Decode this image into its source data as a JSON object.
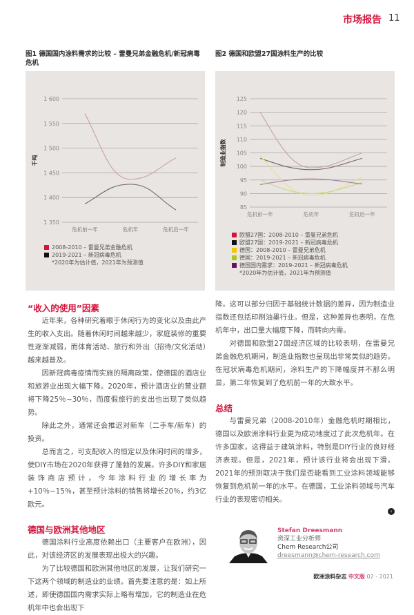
{
  "header": {
    "section": "市场报告",
    "page": "11"
  },
  "fig1": {
    "title": "图1 德国国内涂料需求的比较 – 雷曼兄弟金融危机/新冠病毒危机",
    "ylabel": "千吨",
    "legend": [
      {
        "label": "2008-2010 – 雷曼兄弟金融危机",
        "color": "#d4143c"
      },
      {
        "label": "2019-2021 – 新冠病毒危机",
        "color": "#111111"
      }
    ],
    "note": "*2020年为估计值，2021年为预测值"
  },
  "fig2": {
    "title": "图2 德国和欧盟27国涂料生产的比较",
    "ylabel": "制造业指数",
    "legend": [
      {
        "label": "欧盟27国：2008-2010 – 雷曼兄弟危机",
        "color": "#d4143c"
      },
      {
        "label": "欧盟27国：2019-2021 – 新冠病毒危机",
        "color": "#111111"
      },
      {
        "label": "德国：2008-2010 – 雷曼兄弟危机",
        "color": "#f5c400"
      },
      {
        "label": "德国：2019-2021 – 新冠病毒危机",
        "color": "#a8c81e"
      },
      {
        "label": "德国国内需求：2019-2021 – 新冠病毒危机",
        "color": "#6a1060"
      }
    ],
    "note": "*2020年为估计值，2021年为预测值"
  },
  "chart_data": [
    {
      "type": "line",
      "categories": [
        "危机前一年",
        "危机年",
        "危机后一年"
      ],
      "ylabel": "千吨",
      "ylim": [
        1350,
        1600
      ],
      "yticks": [
        "1 350",
        "1 400",
        "1 450",
        "1 500",
        "1 550",
        "1 600"
      ],
      "grid": true,
      "legend_placement": "bottom",
      "series": [
        {
          "name": "2008-2010 – 雷曼兄弟金融危机",
          "color": "#c9a0a4",
          "values": [
            1570,
            1437,
            1480
          ]
        },
        {
          "name": "2019-2021 – 新冠病毒危机",
          "color": "#6e6560",
          "values": [
            1387,
            1427,
            1375
          ]
        }
      ]
    },
    {
      "type": "line",
      "categories": [
        "危机前一年",
        "危机年",
        "危机后一年"
      ],
      "ylabel": "制造业指数",
      "ylim": [
        85,
        125
      ],
      "yticks": [
        "85",
        "90",
        "95",
        "100",
        "105",
        "110",
        "115",
        "120",
        "125"
      ],
      "grid": true,
      "legend_placement": "bottom",
      "series": [
        {
          "name": "欧盟27国：2008-2010 – 雷曼兄弟危机",
          "color": "#c9a0a4",
          "values": [
            120,
            99.5,
            105
          ]
        },
        {
          "name": "欧盟27国：2019-2021 – 新冠病毒危机",
          "color": "#6e6560",
          "values": [
            103,
            98.8,
            103
          ]
        },
        {
          "name": "德国：2008-2010 – 雷曼兄弟危机",
          "color": "#f0dc8c",
          "values": [
            104,
            89.3,
            96
          ]
        },
        {
          "name": "德国：2019-2021 – 新冠病毒危机",
          "color": "#c6d68c",
          "values": [
            95,
            90,
            94
          ]
        },
        {
          "name": "德国国内需求：2019-2021 – 新冠病毒危机",
          "color": "#a07a98",
          "values": [
            93.3,
            95.4,
            93.5
          ]
        }
      ]
    }
  ],
  "left": {
    "h1": "“收入的使用”因素",
    "p1": "近年来，各种研究着眼于休闲行为的变化以及由此产生的收入支出。随着休闲时间越来越少，家庭装修的重要性逐渐减弱，而体育活动、旅行和外出（招待/文化活动）越来越普及。",
    "p2": "因新冠病毒疫情而实施的隔离政策，使德国的酒店业和旅游业出现大幅下降。2020年，预计酒店业的营业额将下降25％~30％，而度假旅行的支出也出现了类似趋势。",
    "p3": "除此之外，通常还会推迟对新车（二手车/新车）的投资。",
    "p4": "总而言之，可支配收入的恒定以及休闲时间的增多，使DIY市场在2020年获得了蓬勃的发展。许多DIY和家居装饰商店预计，今年涂料行业的增长率为+10％~15％，甚至预计涂料的销售将增长20％，约3亿欧元。",
    "h2": "德国与欧洲其他地区",
    "p5": "德国涂料行业高度依赖出口（主要客户在欧洲），因此，对该经济区的发展表现出极大的兴趣。",
    "p6": "为了比较德国和欧洲其他地区的发展，让我们研究一下这两个领域的制造业的业绩。首先要注意的是：如上所述，即使德国国内需求实际上略有增加，它的制造业在危机年中也会出现下"
  },
  "right": {
    "p1": "降。这可以部分归因于基础统计数据的差异，因为制造业指数还包括印刷油墨行业。但是，这种差异也表明，在危机年中，出口量大幅度下降，而转向内需。",
    "p2": "对德国和欧盟27国经济区域的比较表明，在雷曼兄弟金融危机期间，制造业指数也呈现出非常类似的趋势。在冠状病毒危机期间，涂料生产的下降幅度并不那么明显，第二年恢复到了危机前一年的大致水平。",
    "h1": "总结",
    "p3": "与雷曼兄弟（2008-2010年）金融危机时期相比，德国以及欧洲涂料行业更为成功地度过了此次危机年。在许多国家，这得益于建筑涂料，特别是DIY行业的良好经济表现。但是，2021年，预计该行业将会出现下滑。2021年的预测取决于我们是否能看到工业涂料领域能够恢复到危机前一年的水平。在德国，工业涂料领域与汽车行业的表现密切相关。"
  },
  "author": {
    "name": "Stefan Dreesmann",
    "title": "资深工业分析师",
    "company": "Chem Research公司",
    "email": "dreesmann@chem-research.com"
  },
  "footer": {
    "magazine": "欧洲涂料杂志",
    "edition": "中文版",
    "issue": "02 - 2021"
  }
}
